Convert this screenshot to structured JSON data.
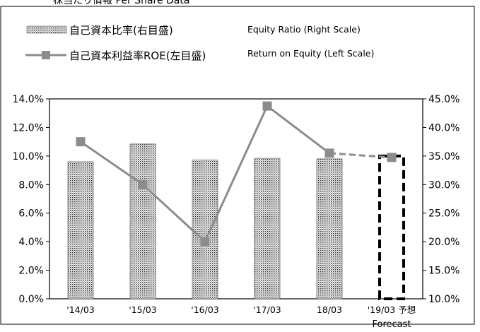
{
  "header_text": "株当たり情報 Per Share Data",
  "chart_data": {
    "type": "bar",
    "categories": [
      "'14/03",
      "'15/03",
      "'16/03",
      "'17/03",
      "18/03",
      "'19/03 予想"
    ],
    "category_sublabels": [
      "",
      "",
      "",
      "",
      "",
      "Forecast"
    ],
    "series": [
      {
        "name": "自己資本比率(右目盛)",
        "name_en": "Equity Ratio (Right Scale)",
        "type": "bar",
        "axis": "right",
        "values": [
          34.0,
          37.1,
          34.3,
          34.6,
          34.5,
          35.0
        ],
        "forecast_index": 5,
        "color": "#f0f0f0"
      },
      {
        "name": "自己資本利益率ROE(左目盛)",
        "name_en": "Return on Equity (Left Scale)",
        "type": "line",
        "axis": "left",
        "values": [
          11.0,
          8.0,
          4.0,
          13.5,
          10.2,
          9.9
        ],
        "forecast_index": 5,
        "color": "#8c8c8c"
      }
    ],
    "y_left": {
      "ylim": [
        0,
        14
      ],
      "ticks": [
        0,
        2,
        4,
        6,
        8,
        10,
        12,
        14
      ],
      "tick_labels": [
        "0.0%",
        "2.0%",
        "4.0%",
        "6.0%",
        "8.0%",
        "10.0%",
        "12.0%",
        "14.0%"
      ]
    },
    "y_right": {
      "ylim": [
        10,
        45
      ],
      "ticks": [
        10,
        15,
        20,
        25,
        30,
        35,
        40,
        45
      ],
      "tick_labels": [
        "10.0%",
        "15.0%",
        "20.0%",
        "25.0%",
        "30.0%",
        "35.0%",
        "40.0%",
        "45.0%"
      ]
    },
    "grid": false,
    "legend_position": "top-left"
  }
}
